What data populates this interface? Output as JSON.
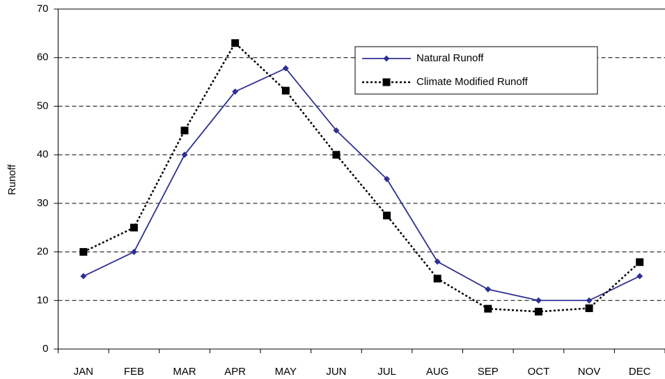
{
  "chart_data": {
    "type": "line",
    "y_label": "Runoff",
    "categories": [
      "JAN",
      "FEB",
      "MAR",
      "APR",
      "MAY",
      "JUN",
      "JUL",
      "AUG",
      "SEP",
      "OCT",
      "NOV",
      "DEC"
    ],
    "series": [
      {
        "name": "Natural Runoff",
        "color": "#2e3192",
        "style": "solid",
        "marker": "diamond",
        "values": [
          15,
          20,
          40,
          53,
          57.8,
          45,
          35,
          18,
          12.3,
          10,
          10,
          15
        ]
      },
      {
        "name": "Climate Modified Runoff",
        "color": "#000000",
        "style": "dotted",
        "marker": "square",
        "values": [
          20,
          25,
          45,
          63,
          53.2,
          40,
          27.5,
          14.5,
          8.3,
          7.7,
          8.4,
          17.9
        ]
      }
    ],
    "ylim": [
      0,
      70
    ],
    "yticks": [
      0,
      10,
      20,
      30,
      40,
      50,
      60,
      70
    ],
    "grid": true,
    "legend": "upper right"
  }
}
